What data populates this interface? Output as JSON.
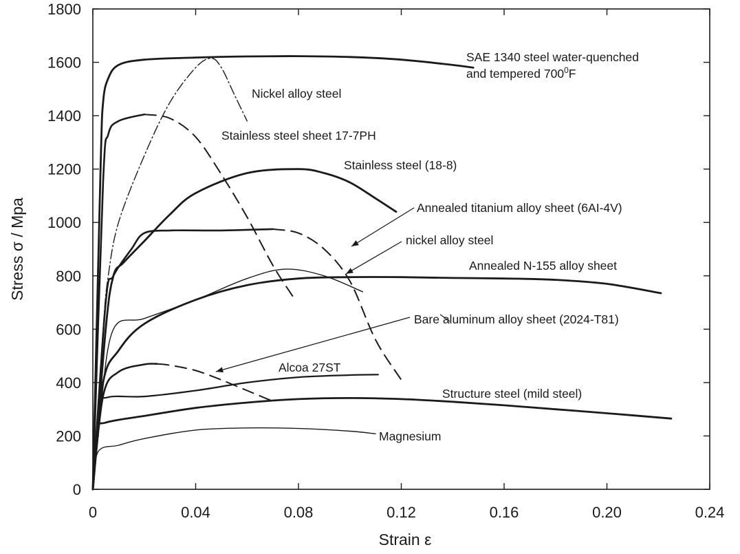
{
  "chart_data": {
    "type": "line",
    "title": "",
    "xlabel": "Strain ε",
    "ylabel": "Stress σ / Mpa",
    "xlim": [
      0,
      0.24
    ],
    "ylim": [
      0,
      1800
    ],
    "xticks": [
      0,
      0.04,
      0.08,
      0.12,
      0.16,
      0.2,
      0.24
    ],
    "xtick_labels": [
      "0",
      "0.04",
      "0.08",
      "0.12",
      "0.16",
      "0.20",
      "0.24"
    ],
    "yticks": [
      0,
      200,
      400,
      600,
      800,
      1000,
      1200,
      1400,
      1600,
      1800
    ],
    "ytick_labels": [
      "0",
      "200",
      "400",
      "600",
      "800",
      "1000",
      "1200",
      "1400",
      "1600",
      "1800"
    ],
    "grid": false,
    "legend": "none",
    "series": [
      {
        "id": "sae1340",
        "name": "SAE 1340 steel water-quenched and tempered 700°F",
        "style": "solid-thick",
        "x": [
          0,
          0.003,
          0.004,
          0.006,
          0.01,
          0.02,
          0.04,
          0.06,
          0.08,
          0.1,
          0.12,
          0.14,
          0.148
        ],
        "y": [
          0,
          1200,
          1450,
          1540,
          1590,
          1610,
          1618,
          1622,
          1623,
          1620,
          1610,
          1590,
          1580
        ]
      },
      {
        "id": "nickel-high",
        "name": "Nickel alloy steel",
        "style": "dashdot",
        "x": [
          0,
          0.004,
          0.006,
          0.01,
          0.02,
          0.03,
          0.04,
          0.046,
          0.05,
          0.055,
          0.06
        ],
        "y": [
          0,
          600,
          800,
          1000,
          1250,
          1450,
          1580,
          1615,
          1580,
          1480,
          1380
        ]
      },
      {
        "id": "ss177",
        "name": "Stainless steel sheet 17-7PH",
        "style": "solid-then-dash",
        "x": [
          0,
          0.004,
          0.006,
          0.01,
          0.02,
          0.03,
          0.04,
          0.05,
          0.06,
          0.07,
          0.078
        ],
        "y": [
          0,
          1150,
          1330,
          1380,
          1405,
          1390,
          1320,
          1180,
          1020,
          840,
          720
        ]
      },
      {
        "id": "ss188",
        "name": "Stainless steel (18-8)",
        "style": "solid-thick",
        "x": [
          0,
          0.005,
          0.008,
          0.012,
          0.02,
          0.03,
          0.04,
          0.06,
          0.08,
          0.09,
          0.1,
          0.11,
          0.118
        ],
        "y": [
          0,
          600,
          800,
          850,
          930,
          1030,
          1110,
          1185,
          1200,
          1185,
          1150,
          1090,
          1040
        ]
      },
      {
        "id": "titanium",
        "name": "Annealed titanium alloy sheet (6Al-4V)",
        "style": "solid-then-dash",
        "x": [
          0,
          0.005,
          0.008,
          0.015,
          0.02,
          0.03,
          0.05,
          0.07,
          0.08,
          0.09,
          0.1,
          0.11,
          0.12
        ],
        "y": [
          0,
          700,
          800,
          900,
          960,
          970,
          970,
          975,
          960,
          900,
          780,
          560,
          410
        ]
      },
      {
        "id": "nickel-low",
        "name": "nickel alloy steel",
        "style": "thin",
        "x": [
          0,
          0.003,
          0.008,
          0.02,
          0.04,
          0.06,
          0.075,
          0.09,
          0.105
        ],
        "y": [
          0,
          300,
          600,
          640,
          710,
          790,
          825,
          800,
          740
        ]
      },
      {
        "id": "n155",
        "name": "Annealed N-155 alloy sheet",
        "style": "solid-thick",
        "x": [
          0,
          0.004,
          0.01,
          0.02,
          0.04,
          0.06,
          0.08,
          0.1,
          0.12,
          0.14,
          0.16,
          0.18,
          0.2,
          0.221
        ],
        "y": [
          0,
          400,
          520,
          620,
          710,
          765,
          790,
          795,
          795,
          792,
          790,
          785,
          770,
          735
        ]
      },
      {
        "id": "aluminum2024",
        "name": "Bare aluminum alloy sheet (2024-T81)",
        "style": "solid-then-dash",
        "x": [
          0,
          0.004,
          0.01,
          0.02,
          0.025,
          0.03,
          0.04,
          0.05,
          0.06,
          0.07
        ],
        "y": [
          0,
          350,
          440,
          468,
          470,
          465,
          445,
          410,
          370,
          330
        ]
      },
      {
        "id": "alcoa27st",
        "name": "Alcoa 27ST",
        "style": "solid",
        "x": [
          0,
          0.003,
          0.006,
          0.02,
          0.04,
          0.06,
          0.08,
          0.1,
          0.111
        ],
        "y": [
          0,
          300,
          345,
          348,
          370,
          400,
          420,
          428,
          430
        ]
      },
      {
        "id": "mild-steel",
        "name": "Structure steel (mild steel)",
        "style": "solid-thick",
        "x": [
          0,
          0.002,
          0.005,
          0.02,
          0.04,
          0.06,
          0.08,
          0.1,
          0.12,
          0.14,
          0.16,
          0.18,
          0.2,
          0.225
        ],
        "y": [
          0,
          220,
          250,
          275,
          305,
          325,
          338,
          342,
          338,
          328,
          315,
          300,
          285,
          265
        ]
      },
      {
        "id": "magnesium",
        "name": "Magnesium",
        "style": "thin",
        "x": [
          0,
          0.002,
          0.01,
          0.02,
          0.04,
          0.06,
          0.08,
          0.1,
          0.11
        ],
        "y": [
          0,
          140,
          165,
          190,
          222,
          230,
          228,
          218,
          208
        ]
      }
    ],
    "annotations": [
      {
        "id": "sae1340-label",
        "line1": "SAE 1340 steel water-quenched",
        "line2": "and tempered 700",
        "superscript": "0",
        "suffix": "F"
      },
      {
        "id": "nickel-high-label",
        "text": "Nickel alloy steel"
      },
      {
        "id": "ss177-label",
        "text": "Stainless steel sheet 17-7PH"
      },
      {
        "id": "ss188-label",
        "text": "Stainless steel (18-8)"
      },
      {
        "id": "titanium-label",
        "text": "Annealed titanium alloy sheet (6AI-4V)"
      },
      {
        "id": "nickel-low-label",
        "text": "nickel alloy steel"
      },
      {
        "id": "n155-label",
        "text": "Annealed N-155 alloy sheet"
      },
      {
        "id": "aluminum-label",
        "text": "Bare aluminum alloy sheet (2024-T81)"
      },
      {
        "id": "alcoa-label",
        "text": "Alcoa 27ST"
      },
      {
        "id": "mild-steel-label",
        "text": "Structure steel (mild steel)"
      },
      {
        "id": "magnesium-label",
        "text": "Magnesium"
      }
    ]
  }
}
